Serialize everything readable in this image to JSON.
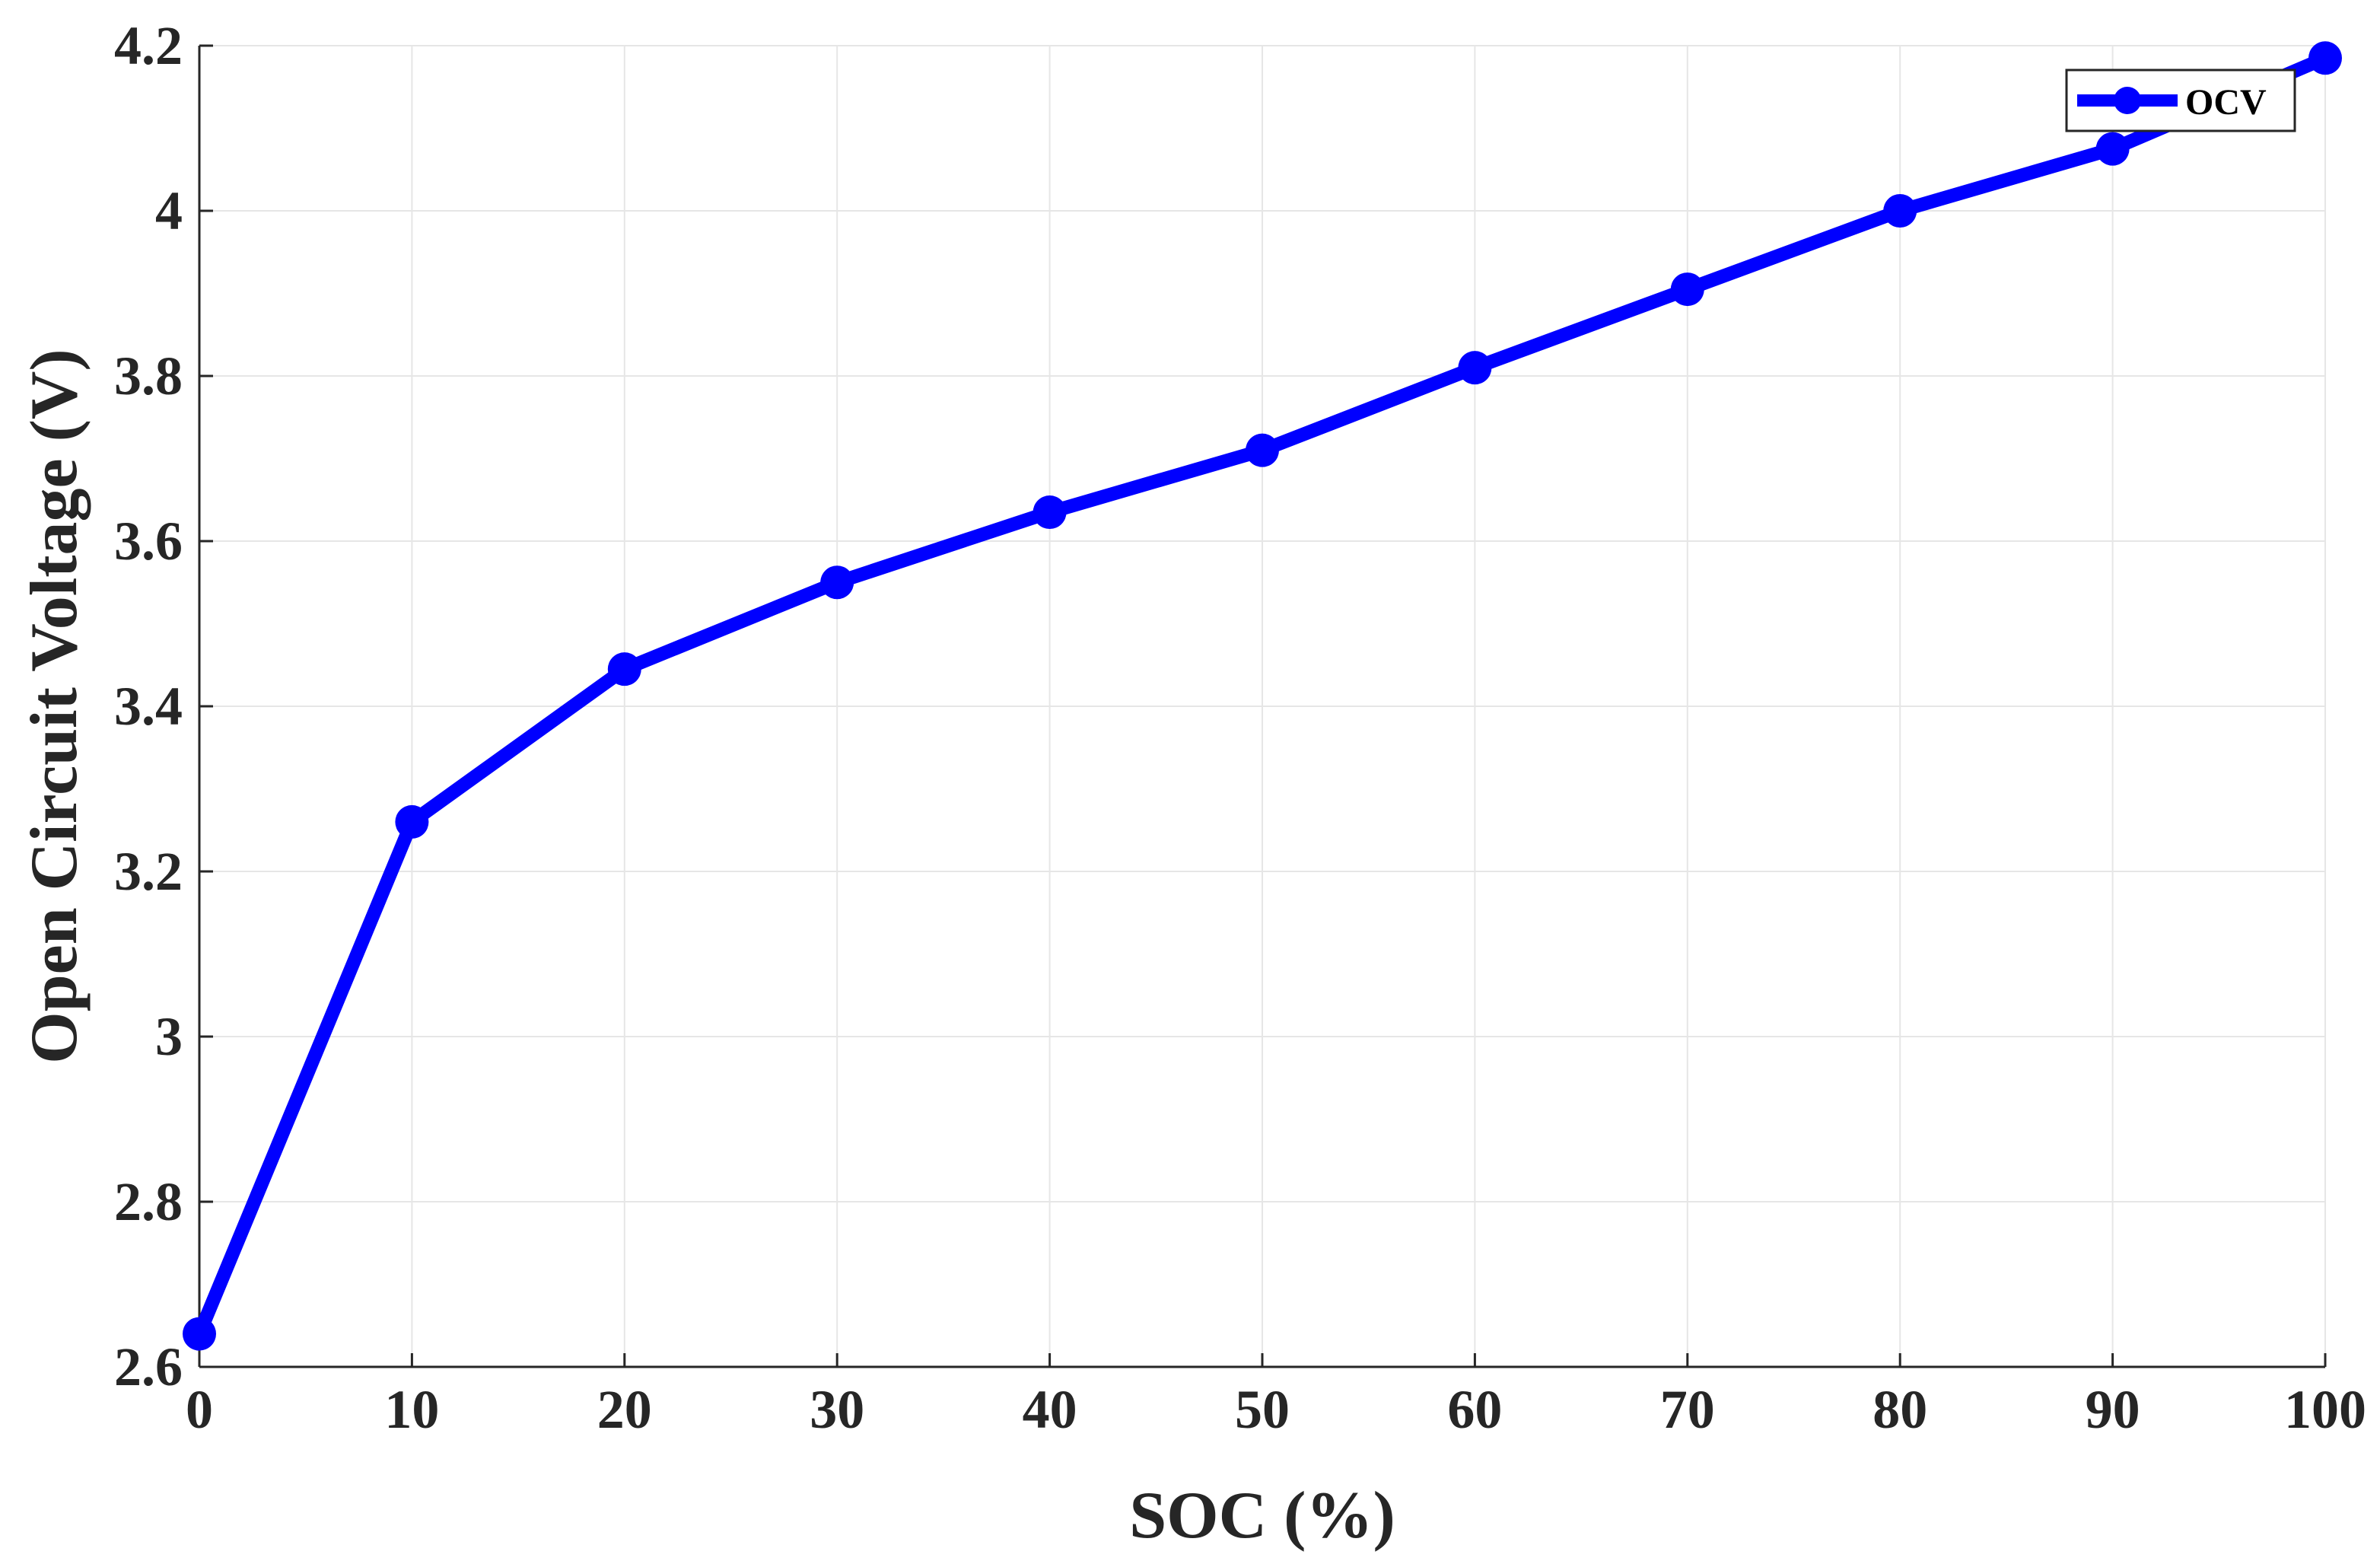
{
  "chart_data": {
    "type": "line",
    "title": "",
    "xlabel": "SOC (%)",
    "ylabel": "Open Circuit Voltage (V)",
    "xlim": [
      0,
      100
    ],
    "ylim": [
      2.6,
      4.2
    ],
    "xticks": [
      "0",
      "10",
      "20",
      "30",
      "40",
      "50",
      "60",
      "70",
      "80",
      "90",
      "100"
    ],
    "yticks": [
      "2.6",
      "2.8",
      "3",
      "3.2",
      "3.4",
      "3.6",
      "3.8",
      "4",
      "4.2"
    ],
    "grid": true,
    "legend_position": "top-right",
    "series": [
      {
        "name": "OCV",
        "color": "#0000ff",
        "marker": "circle",
        "x": [
          0,
          10,
          20,
          30,
          40,
          50,
          60,
          70,
          80,
          90,
          100
        ],
        "y": [
          2.64,
          3.26,
          3.445,
          3.55,
          3.635,
          3.71,
          3.81,
          3.905,
          4.0,
          4.075,
          4.185
        ]
      }
    ]
  }
}
